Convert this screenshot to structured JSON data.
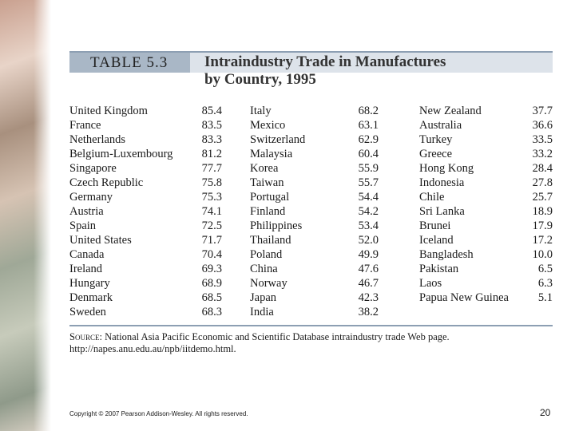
{
  "header": {
    "tag": "TABLE 5.3",
    "title_lines": [
      "Intraindustry Trade in Manufactures",
      "by Country, 1995"
    ]
  },
  "table": {
    "rows": [
      [
        "United Kingdom",
        "85.4",
        "Italy",
        "68.2",
        "New Zealand",
        "37.7"
      ],
      [
        "France",
        "83.5",
        "Mexico",
        "63.1",
        "Australia",
        "36.6"
      ],
      [
        "Netherlands",
        "83.3",
        "Switzerland",
        "62.9",
        "Turkey",
        "33.5"
      ],
      [
        "Belgium-Luxembourg",
        "81.2",
        "Malaysia",
        "60.4",
        "Greece",
        "33.2"
      ],
      [
        "Singapore",
        "77.7",
        "Korea",
        "55.9",
        "Hong Kong",
        "28.4"
      ],
      [
        "Czech Republic",
        "75.8",
        "Taiwan",
        "55.7",
        "Indonesia",
        "27.8"
      ],
      [
        "Germany",
        "75.3",
        "Portugal",
        "54.4",
        "Chile",
        "25.7"
      ],
      [
        "Austria",
        "74.1",
        "Finland",
        "54.2",
        "Sri Lanka",
        "18.9"
      ],
      [
        "Spain",
        "72.5",
        "Philippines",
        "53.4",
        "Brunei",
        "17.9"
      ],
      [
        "United States",
        "71.7",
        "Thailand",
        "52.0",
        "Iceland",
        "17.2"
      ],
      [
        "Canada",
        "70.4",
        "Poland",
        "49.9",
        "Bangladesh",
        "10.0"
      ],
      [
        "Ireland",
        "69.3",
        "China",
        "47.6",
        "Pakistan",
        "6.5"
      ],
      [
        "Hungary",
        "68.9",
        "Norway",
        "46.7",
        "Laos",
        "6.3"
      ],
      [
        "Denmark",
        "68.5",
        "Japan",
        "42.3",
        "Papua New Guinea",
        "5.1"
      ],
      [
        "Sweden",
        "68.3",
        "India",
        "38.2"
      ]
    ]
  },
  "source": {
    "label": "Source:",
    "text": "National Asia Pacific Economic and Scientific Database intraindustry trade Web page. http://napes.anu.edu.au/npb/iitdemo.html."
  },
  "footer": {
    "copyright": "Copyright © 2007 Pearson Addison-Wesley. All rights reserved.",
    "page": "20"
  }
}
